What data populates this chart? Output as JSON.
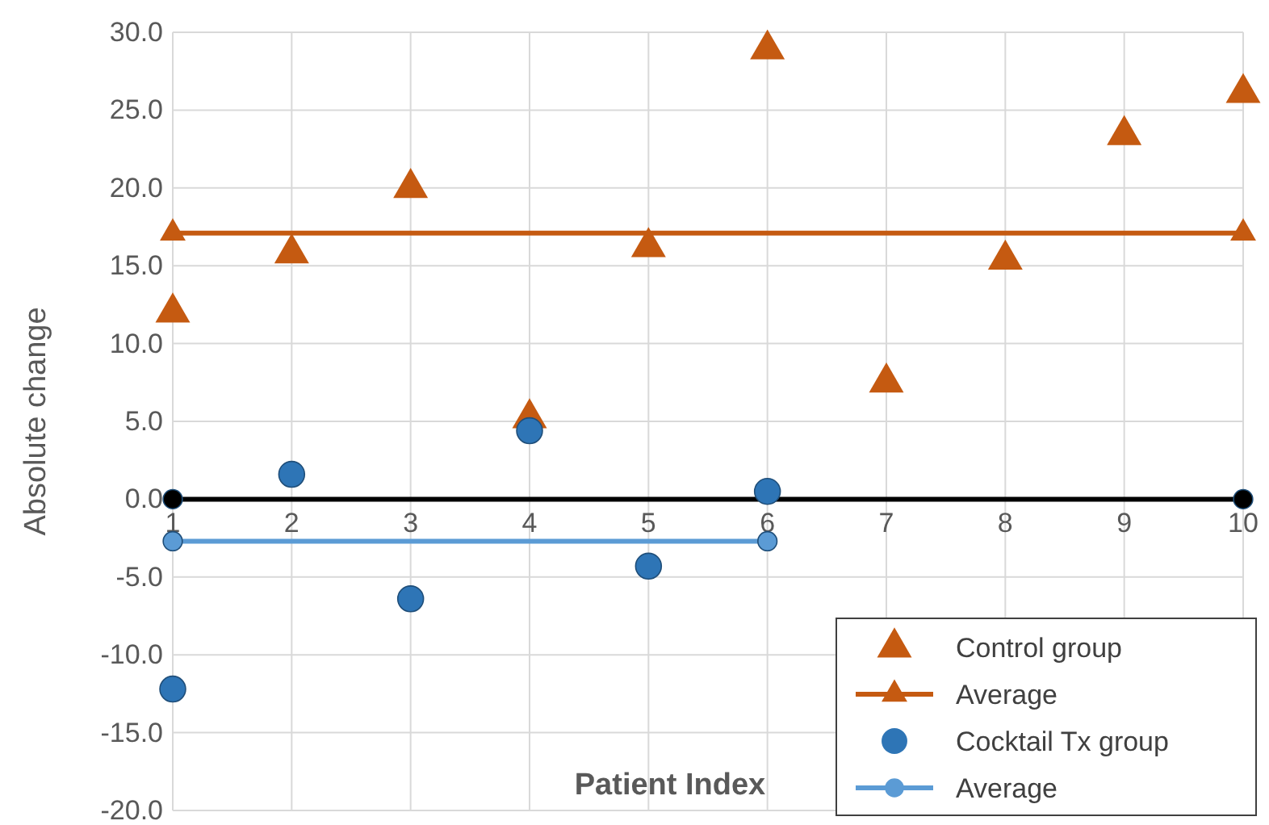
{
  "chart_data": {
    "type": "scatter",
    "xlabel": "Patient Index",
    "ylabel": "Absolute change",
    "xlim": [
      1,
      10
    ],
    "xticks": [
      1,
      2,
      3,
      4,
      5,
      6,
      7,
      8,
      9,
      10
    ],
    "ylim": [
      -20,
      30
    ],
    "yticks": [
      {
        "value": -20,
        "label": "-20.0"
      },
      {
        "value": -15,
        "label": "-15.0"
      },
      {
        "value": -10,
        "label": "-10.0"
      },
      {
        "value": -5,
        "label": "-5.0"
      },
      {
        "value": 0,
        "label": "0.0"
      },
      {
        "value": 5,
        "label": "5.0"
      },
      {
        "value": 10,
        "label": "10.0"
      },
      {
        "value": 15,
        "label": "15.0"
      },
      {
        "value": 20,
        "label": "20.0"
      },
      {
        "value": 25,
        "label": "25.0"
      },
      {
        "value": 30,
        "label": "30.0"
      }
    ],
    "grid": true,
    "legend": "bottom right",
    "series": [
      {
        "name": "Control group",
        "type": "scatter",
        "marker": "triangle",
        "color": "#c55a11",
        "x": [
          1,
          2,
          3,
          4,
          5,
          6,
          7,
          8,
          9,
          10
        ],
        "values": [
          12.0,
          15.8,
          20.0,
          5.2,
          16.2,
          28.9,
          7.5,
          15.4,
          23.4,
          26.1
        ]
      },
      {
        "name": "Average",
        "type": "line",
        "marker": "triangle",
        "color": "#c55a11",
        "x": [
          1,
          10
        ],
        "values": [
          17.1,
          17.1
        ]
      },
      {
        "name": "Cocktail Tx group",
        "type": "scatter",
        "marker": "circle",
        "color": "#2e75b6",
        "x": [
          1,
          2,
          3,
          4,
          5,
          6
        ],
        "values": [
          -12.2,
          1.6,
          -6.4,
          4.4,
          -4.3,
          0.5
        ]
      },
      {
        "name": "Average",
        "type": "line",
        "marker": "circle",
        "color": "#5b9bd5",
        "x": [
          1,
          6
        ],
        "values": [
          -2.7,
          -2.7
        ]
      },
      {
        "type": "line",
        "marker": "circle",
        "color": "#000000",
        "x": [
          1,
          10
        ],
        "values": [
          0,
          0
        ]
      }
    ]
  }
}
